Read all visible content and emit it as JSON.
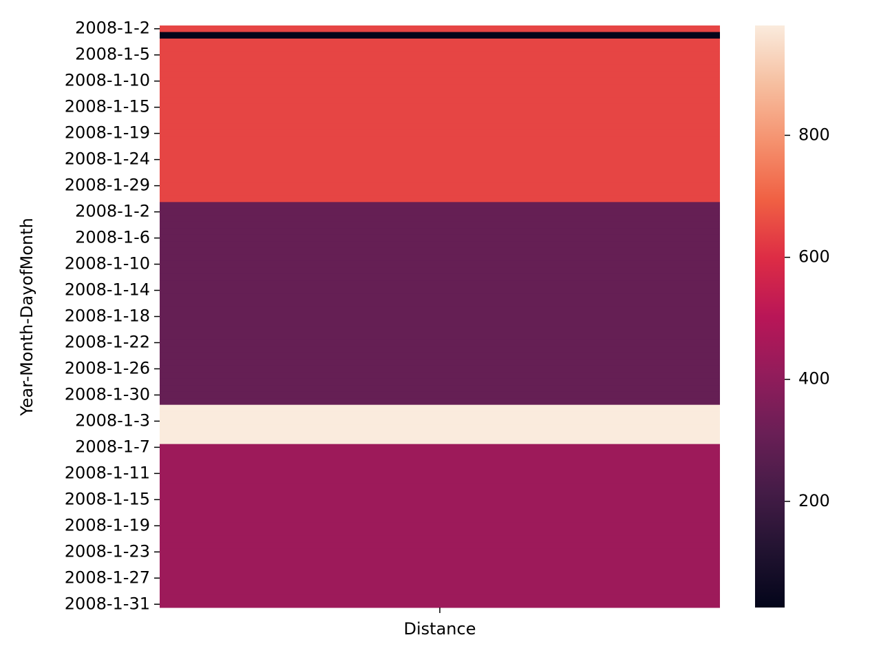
{
  "chart_data": {
    "type": "heatmap",
    "ylabel": "Year-Month-DayofMonth",
    "x": [
      "Distance"
    ],
    "categories": [
      "2008-1-2",
      null,
      null,
      null,
      "2008-1-5",
      null,
      null,
      null,
      "2008-1-10",
      null,
      null,
      null,
      "2008-1-15",
      null,
      null,
      null,
      "2008-1-19",
      null,
      null,
      null,
      "2008-1-24",
      null,
      null,
      null,
      "2008-1-29",
      null,
      null,
      null,
      "2008-1-2",
      null,
      null,
      null,
      "2008-1-6",
      null,
      null,
      null,
      "2008-1-10",
      null,
      null,
      null,
      "2008-1-14",
      null,
      null,
      null,
      "2008-1-18",
      null,
      null,
      null,
      "2008-1-22",
      null,
      null,
      null,
      "2008-1-26",
      null,
      null,
      null,
      "2008-1-30",
      null,
      null,
      null,
      "2008-1-3",
      null,
      null,
      null,
      "2008-1-7",
      null,
      null,
      null,
      "2008-1-11",
      null,
      null,
      null,
      "2008-1-15",
      null,
      null,
      null,
      "2008-1-19",
      null,
      null,
      null,
      "2008-1-23",
      null,
      null,
      null,
      "2008-1-27",
      null,
      null,
      null,
      "2008-1-31"
    ],
    "values": [
      645,
      26,
      645,
      645,
      645,
      645,
      645,
      645,
      645,
      645,
      645,
      645,
      645,
      645,
      645,
      645,
      645,
      645,
      645,
      645,
      645,
      645,
      645,
      645,
      645,
      645,
      645,
      300,
      300,
      300,
      300,
      300,
      300,
      300,
      300,
      300,
      300,
      300,
      300,
      300,
      300,
      300,
      300,
      300,
      300,
      300,
      300,
      300,
      300,
      300,
      300,
      300,
      300,
      300,
      300,
      300,
      300,
      300,
      980,
      980,
      980,
      980,
      980,
      980,
      435,
      435,
      435,
      435,
      435,
      435,
      435,
      435,
      435,
      435,
      435,
      435,
      435,
      435,
      435,
      435,
      435,
      435,
      435,
      435,
      435,
      435,
      435,
      435,
      435
    ],
    "clim": [
      26,
      980
    ],
    "cticks": [
      200,
      400,
      600,
      800
    ],
    "colormap": [
      "#03051a",
      "#221331",
      "#451c47",
      "#6a1f56",
      "#921c5b",
      "#b91657",
      "#dd2c45",
      "#f06043",
      "#f5916e",
      "#f6bfa0",
      "#faebdd"
    ]
  }
}
